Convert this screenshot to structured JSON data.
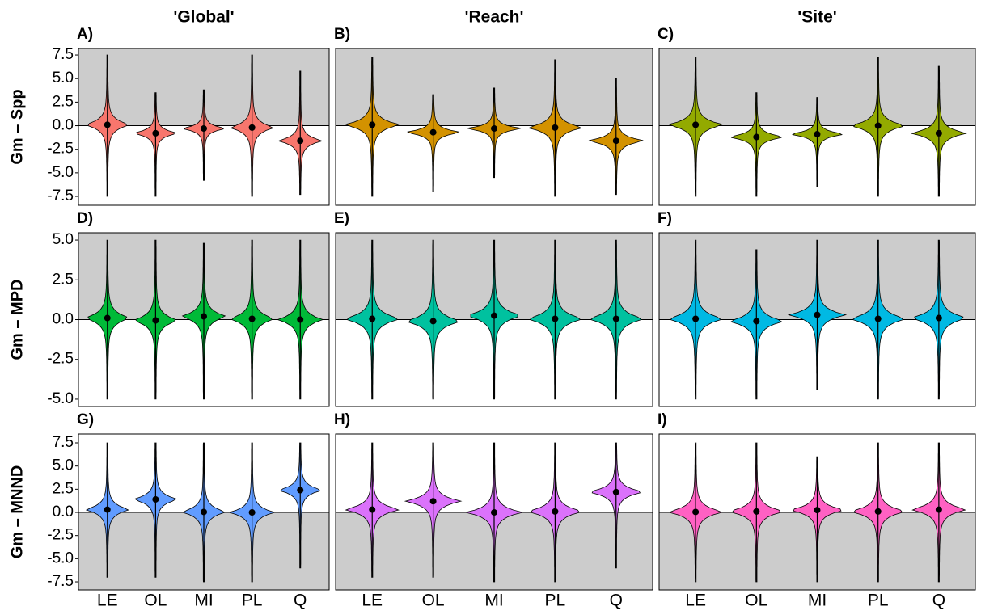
{
  "chart_data": [
    {
      "type": "violin",
      "label": "A)",
      "title": "'Global'",
      "ylabel": "Gm – Spp",
      "color": "#F8766D",
      "shade_above": true,
      "hline": 0,
      "ylim": [
        -8.44,
        8.19
      ],
      "yticks": [
        {
          "value": -7.5,
          "label": "-7.5"
        },
        {
          "value": -5,
          "label": "-5.0"
        },
        {
          "value": -2.5,
          "label": "-2.5"
        },
        {
          "value": 0,
          "label": "0.0"
        },
        {
          "value": 2.5,
          "label": "2.5"
        },
        {
          "value": 5,
          "label": "5.0"
        },
        {
          "value": 7.5,
          "label": "7.5"
        }
      ],
      "values": [
        0.1,
        -0.8,
        -0.3,
        -0.2,
        -1.6
      ],
      "lower": [
        -7.5,
        -7.5,
        -5.8,
        -7.5,
        -7.3
      ],
      "upper": [
        7.5,
        3.5,
        3.8,
        7.5,
        5.8
      ]
    },
    {
      "type": "violin",
      "label": "B)",
      "title": "'Reach'",
      "color": "#D39200",
      "shade_above": true,
      "hline": 0,
      "values": [
        0.1,
        -0.7,
        -0.3,
        -0.2,
        -1.6
      ],
      "lower": [
        -7.5,
        -7.0,
        -5.5,
        -7.5,
        -7.3
      ],
      "upper": [
        7.3,
        3.3,
        4.0,
        7.0,
        5.0
      ]
    },
    {
      "type": "violin",
      "label": "C)",
      "title": "'Site'",
      "color": "#93AA00",
      "shade_above": true,
      "hline": 0,
      "values": [
        0.1,
        -1.2,
        -0.9,
        0.0,
        -0.8
      ],
      "lower": [
        -7.5,
        -7.5,
        -6.5,
        -7.5,
        -7.5
      ],
      "upper": [
        7.3,
        3.5,
        3.0,
        7.3,
        6.3
      ]
    },
    {
      "type": "violin",
      "label": "D)",
      "ylabel": "Gm – MPD",
      "color": "#00BA38",
      "shade_above": true,
      "hline": 0,
      "ylim": [
        -5.46,
        5.46
      ],
      "yticks": [
        {
          "value": -5,
          "label": "-5.0"
        },
        {
          "value": -2.5,
          "label": "-2.5"
        },
        {
          "value": 0,
          "label": "0.0"
        },
        {
          "value": 2.5,
          "label": "2.5"
        },
        {
          "value": 5,
          "label": "5.0"
        }
      ],
      "values": [
        0.1,
        -0.05,
        0.2,
        0.05,
        0.0
      ],
      "lower": [
        -5,
        -5,
        -5,
        -5,
        -5
      ],
      "upper": [
        5,
        5,
        4.8,
        5,
        5
      ]
    },
    {
      "type": "violin",
      "label": "E)",
      "color": "#00C19F",
      "shade_above": true,
      "hline": 0,
      "values": [
        0.05,
        -0.1,
        0.25,
        0.05,
        0.05
      ],
      "lower": [
        -5,
        -5,
        -5,
        -5,
        -5
      ],
      "upper": [
        5,
        5,
        5,
        5,
        5
      ]
    },
    {
      "type": "violin",
      "label": "F)",
      "color": "#00B9E3",
      "shade_above": true,
      "hline": 0,
      "values": [
        0.05,
        -0.1,
        0.3,
        0.05,
        0.1
      ],
      "lower": [
        -5,
        -5,
        -4.4,
        -5,
        -5
      ],
      "upper": [
        5,
        4.4,
        5,
        5,
        5
      ]
    },
    {
      "type": "violin",
      "label": "G)",
      "ylabel": "Gm – MNND",
      "color": "#619CFF",
      "shade_above": false,
      "hline": 0,
      "ylim": [
        -8.37,
        8.46
      ],
      "yticks": [
        {
          "value": -7.5,
          "label": "-7.5"
        },
        {
          "value": -5,
          "label": "-5.0"
        },
        {
          "value": -2.5,
          "label": "-2.5"
        },
        {
          "value": 0,
          "label": "0.0"
        },
        {
          "value": 2.5,
          "label": "2.5"
        },
        {
          "value": 5,
          "label": "5.0"
        },
        {
          "value": 7.5,
          "label": "7.5"
        }
      ],
      "categories": [
        "LE",
        "OL",
        "MI",
        "PL",
        "Q"
      ],
      "values": [
        0.3,
        1.4,
        0.05,
        0.0,
        2.4
      ],
      "lower": [
        -7.0,
        -7.0,
        -7.5,
        -7.5,
        -6.0
      ],
      "upper": [
        7.5,
        7.5,
        7.5,
        7.5,
        7.5
      ]
    },
    {
      "type": "violin",
      "label": "H)",
      "color": "#DB72FB",
      "shade_above": false,
      "hline": 0,
      "categories": [
        "LE",
        "OL",
        "MI",
        "PL",
        "Q"
      ],
      "values": [
        0.3,
        1.2,
        0.0,
        0.1,
        2.2
      ],
      "lower": [
        -7.0,
        -7.0,
        -7.5,
        -7.5,
        -6.0
      ],
      "upper": [
        7.5,
        7.5,
        7.5,
        7.5,
        7.5
      ]
    },
    {
      "type": "violin",
      "label": "I)",
      "color": "#FF61C3",
      "shade_above": false,
      "hline": 0,
      "categories": [
        "LE",
        "OL",
        "MI",
        "PL",
        "Q"
      ],
      "values": [
        0.05,
        0.1,
        0.25,
        0.1,
        0.3
      ],
      "lower": [
        -7.5,
        -7.5,
        -7.5,
        -7.5,
        -7.5
      ],
      "upper": [
        7.5,
        7.5,
        6.0,
        7.5,
        7.5
      ]
    }
  ]
}
